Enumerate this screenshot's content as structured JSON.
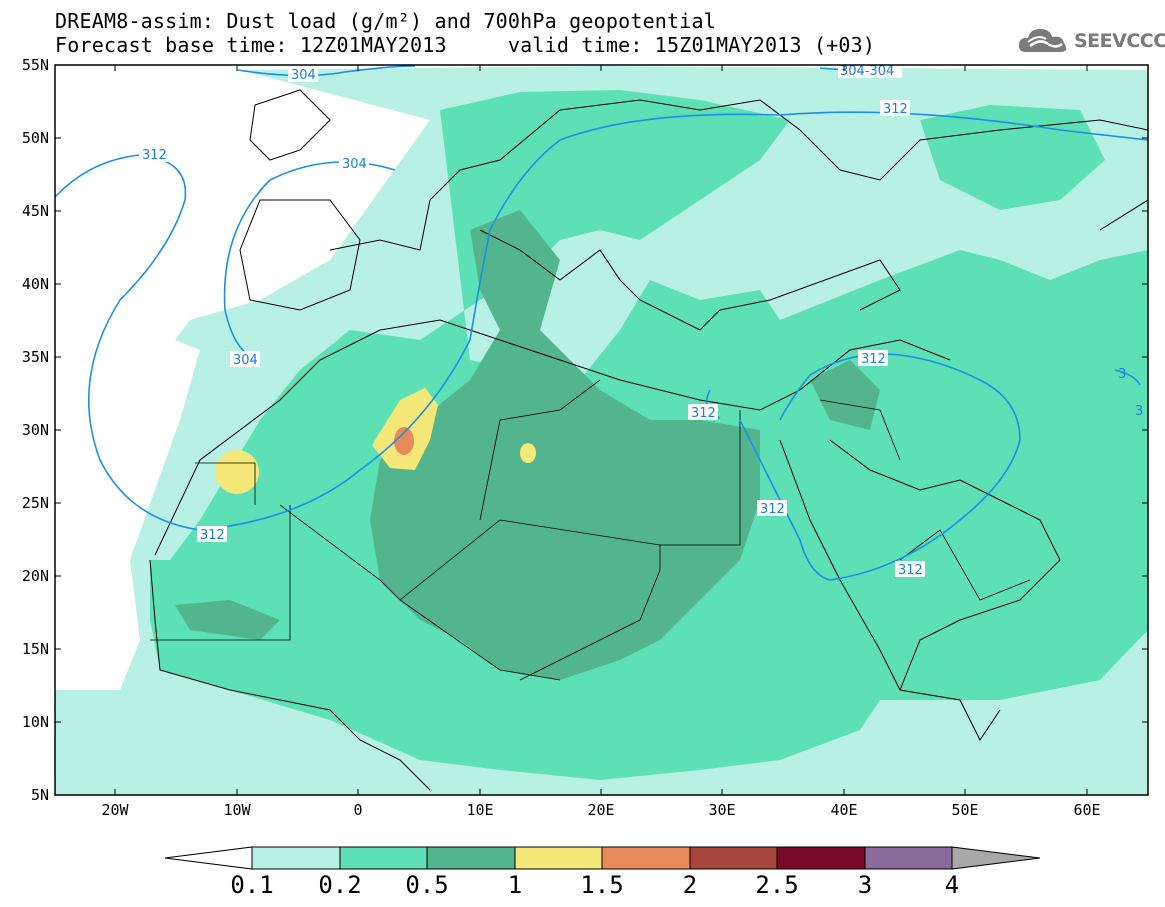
{
  "title_line1": "DREAM8-assim: Dust load (g/m²) and 700hPa geopotential",
  "title_line2": "Forecast base time: 12Z01MAY2013     valid time: 15Z01MAY2013 (+03)",
  "logo": {
    "text": "SEEVCCC",
    "icon": "cloud-logo-icon"
  },
  "map": {
    "lon_range": [
      -25,
      65
    ],
    "lat_range": [
      5,
      55
    ],
    "lat_ticks": [
      "55N",
      "50N",
      "45N",
      "40N",
      "35N",
      "30N",
      "25N",
      "20N",
      "15N",
      "10N",
      "5N"
    ],
    "lon_ticks": [
      "20W",
      "10W",
      "0",
      "10E",
      "20E",
      "30E",
      "40E",
      "50E",
      "60E"
    ],
    "contour_color": "#1a8fe8",
    "contour_labels": [
      "304",
      "304",
      "312",
      "312",
      "304",
      "312",
      "312",
      "312",
      "312",
      "312",
      "304-304",
      "3",
      "3"
    ]
  },
  "colorbar": {
    "labels": [
      "0.1",
      "0.2",
      "0.5",
      "1",
      "1.5",
      "2",
      "2.5",
      "3",
      "4"
    ],
    "colors": [
      "#ffffff",
      "#b8f0e4",
      "#5ee0b6",
      "#52b58e",
      "#f5e878",
      "#e98a5c",
      "#a9463b",
      "#7a0a2a",
      "#8b6a9c",
      "#a8a8a8"
    ]
  }
}
